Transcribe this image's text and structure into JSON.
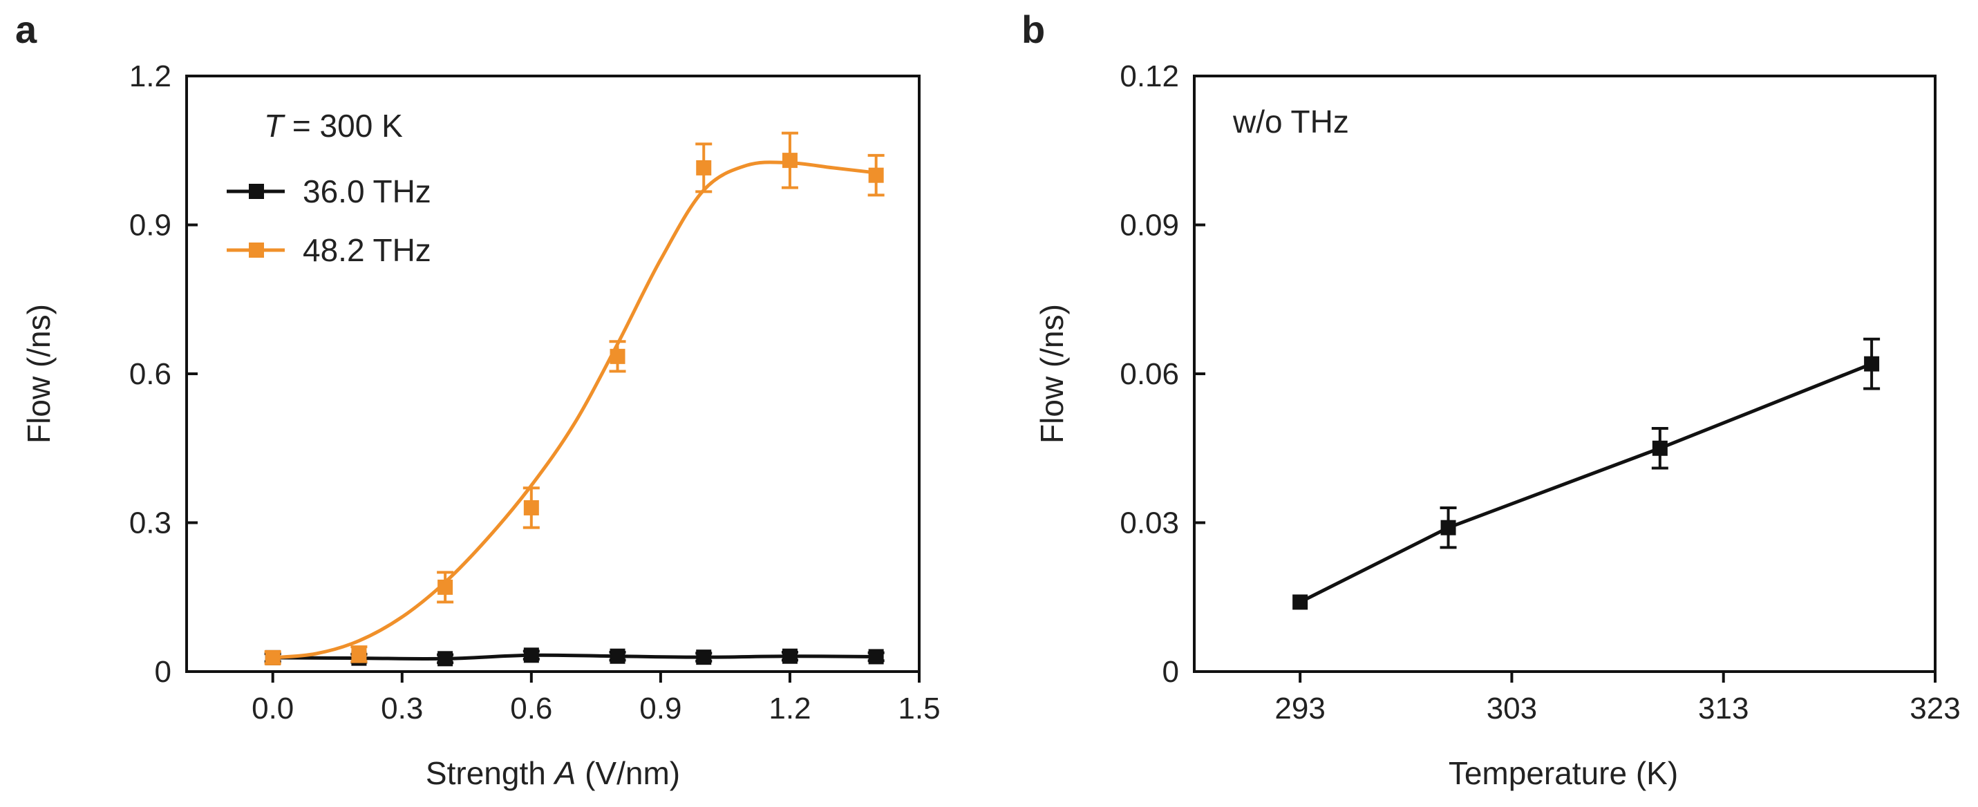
{
  "colors": {
    "series_black": "#111111",
    "series_orange": "#F0902A"
  },
  "chart_data": [
    {
      "panel": "a",
      "type": "line",
      "xlabel_pre": "Strength ",
      "xlabel_var": "A",
      "xlabel_post": " (V/nm)",
      "ylabel": "Flow (/ns)",
      "xlim": [
        -0.2,
        1.5
      ],
      "ylim": [
        0,
        1.2
      ],
      "xticks": [
        0.0,
        0.3,
        0.6,
        0.9,
        1.2,
        1.5
      ],
      "xtick_labels": [
        "0.0",
        "0.3",
        "0.6",
        "0.9",
        "1.2",
        "1.5"
      ],
      "yticks": [
        0,
        0.3,
        0.6,
        0.9,
        1.2
      ],
      "ytick_labels": [
        "0",
        "0.3",
        "0.6",
        "0.9",
        "1.2"
      ],
      "legend_title_var": "T",
      "legend_title_rest": " = 300 K",
      "legend_position": "top-left",
      "series": [
        {
          "name": "36.0 THz",
          "color": "#111111",
          "x": [
            0.0,
            0.2,
            0.4,
            0.6,
            0.8,
            1.0,
            1.2,
            1.4
          ],
          "y": [
            0.028,
            0.027,
            0.026,
            0.033,
            0.031,
            0.029,
            0.031,
            0.03
          ],
          "err": [
            0.008,
            0.008,
            0.008,
            0.008,
            0.008,
            0.008,
            0.008,
            0.008
          ],
          "fit_x": [
            0.0,
            0.2,
            0.4,
            0.6,
            0.8,
            1.0,
            1.2,
            1.4
          ],
          "fit_y": [
            0.028,
            0.027,
            0.026,
            0.033,
            0.031,
            0.029,
            0.031,
            0.03
          ]
        },
        {
          "name": "48.2 THz",
          "color": "#F0902A",
          "x": [
            0.0,
            0.2,
            0.4,
            0.6,
            0.8,
            1.0,
            1.2,
            1.4
          ],
          "y": [
            0.028,
            0.035,
            0.17,
            0.33,
            0.635,
            1.015,
            1.03,
            1.0
          ],
          "err": [
            0.012,
            0.015,
            0.03,
            0.04,
            0.03,
            0.048,
            0.055,
            0.04
          ],
          "fit_x": [
            0.0,
            0.1,
            0.2,
            0.3,
            0.4,
            0.5,
            0.6,
            0.7,
            0.8,
            0.9,
            1.0,
            1.1,
            1.2,
            1.3,
            1.4
          ],
          "fit_y": [
            0.028,
            0.036,
            0.062,
            0.11,
            0.18,
            0.27,
            0.375,
            0.5,
            0.66,
            0.83,
            0.97,
            1.02,
            1.025,
            1.015,
            1.005
          ]
        }
      ]
    },
    {
      "panel": "b",
      "type": "line",
      "xlabel": "Temperature (K)",
      "ylabel": "Flow (/ns)",
      "annotation": "w/o THz",
      "xlim": [
        288,
        323
      ],
      "ylim": [
        0,
        0.12
      ],
      "xticks": [
        293,
        303,
        313,
        323
      ],
      "xtick_labels": [
        "293",
        "303",
        "313",
        "323"
      ],
      "yticks": [
        0,
        0.03,
        0.06,
        0.09,
        0.12
      ],
      "ytick_labels": [
        "0",
        "0.03",
        "0.06",
        "0.09",
        "0.12"
      ],
      "series": [
        {
          "name": "w/o THz",
          "color": "#111111",
          "x": [
            293,
            300,
            310,
            320
          ],
          "y": [
            0.014,
            0.029,
            0.045,
            0.062
          ],
          "err": [
            0.0,
            0.004,
            0.004,
            0.005
          ]
        }
      ]
    }
  ]
}
